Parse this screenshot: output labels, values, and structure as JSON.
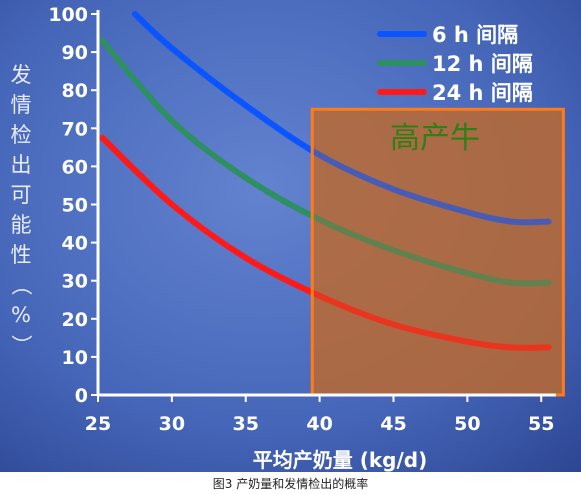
{
  "chart_data": {
    "type": "line",
    "xlabel": "平均产奶量 (kg/d)",
    "ylabel": "发情检出可能性（%）",
    "xlim": [
      25,
      56
    ],
    "ylim": [
      0,
      100
    ],
    "xticks": [
      25,
      30,
      35,
      40,
      45,
      50,
      55
    ],
    "yticks": [
      0,
      10,
      20,
      30,
      40,
      50,
      60,
      70,
      80,
      90,
      100
    ],
    "legend_position": "top-right",
    "series": [
      {
        "name": "6 h 间隔",
        "color": "#0a55ff",
        "x": [
          27.5,
          30,
          35,
          40,
          45,
          50,
          53,
          55.5
        ],
        "y": [
          100,
          91,
          76,
          63,
          54,
          48,
          45.5,
          45.5
        ]
      },
      {
        "name": "12 h 间隔",
        "color": "#2e8f62",
        "x": [
          25.3,
          30,
          35,
          40,
          45,
          50,
          53,
          55.5
        ],
        "y": [
          93,
          72,
          57,
          46,
          38,
          32,
          29.5,
          29.5
        ]
      },
      {
        "name": "24 h 间隔",
        "color": "#ff1a1a",
        "x": [
          25.3,
          30,
          35,
          40,
          45,
          50,
          53,
          55.5
        ],
        "y": [
          67.5,
          50,
          36,
          26,
          18.5,
          14,
          12.5,
          12.5
        ]
      }
    ],
    "region": {
      "label": "高产牛",
      "x": [
        39.5,
        56.5
      ],
      "y": [
        0,
        75
      ],
      "fill": "#c0692c",
      "stroke": "#ff7a1a"
    },
    "caption": "图3 产奶量和发情检出的概率"
  }
}
